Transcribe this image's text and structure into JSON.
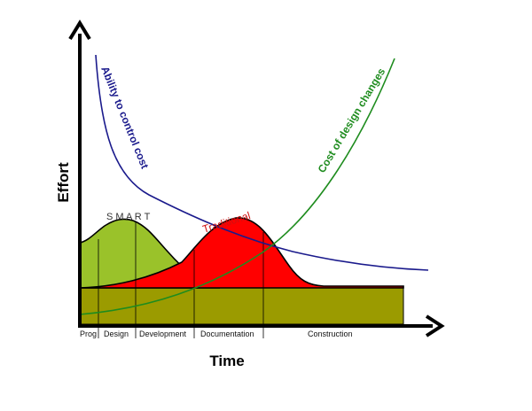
{
  "diagram": {
    "x_axis_label": "Time",
    "y_axis_label": "Effort",
    "phases": [
      "Prog",
      "Design",
      "Development",
      "Documentation",
      "Construction"
    ],
    "curves": {
      "ability": {
        "label": "Ability to control cost",
        "color": "#1a1a8c"
      },
      "cost": {
        "label": "Cost of design  changes",
        "color": "#1e8c1e"
      },
      "smart": {
        "label": "S M A R T",
        "color": "#9ac22a",
        "label_color": "#333333"
      },
      "traditional": {
        "label": "Traditional",
        "color": "#ff0000",
        "label_color": "#d01010"
      },
      "baseline": {
        "color": "#9b9b00"
      }
    }
  }
}
